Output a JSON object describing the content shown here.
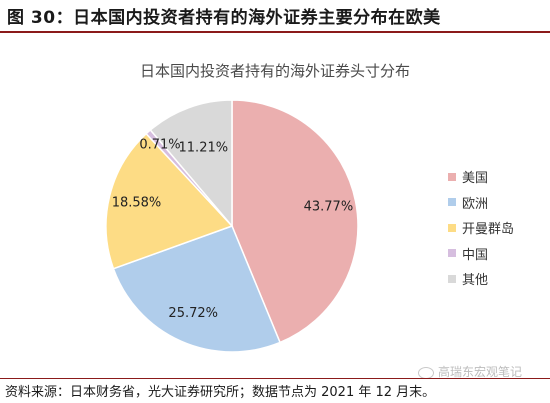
{
  "figure_title": "图 30：日本国内投资者持有的海外证券主要分布在欧美",
  "chart_data": {
    "type": "pie",
    "title": "日本国内投资者持有的海外证券头寸分布",
    "slices": [
      {
        "name": "美国",
        "value": 43.77,
        "label": "43.77%",
        "color": "#EBAFAF"
      },
      {
        "name": "欧洲",
        "value": 25.72,
        "label": "25.72%",
        "color": "#B0CDEB"
      },
      {
        "name": "开曼群岛",
        "value": 18.58,
        "label": "18.58%",
        "color": "#FDDC85"
      },
      {
        "name": "中国",
        "value": 0.71,
        "label": "0.71%",
        "color": "#D6BEDF"
      },
      {
        "name": "其他",
        "value": 11.21,
        "label": "11.21%",
        "color": "#D9D9D9"
      }
    ],
    "legend_position": "right",
    "start_angle": "12 o'clock",
    "direction": "clockwise"
  },
  "watermark": "高瑞东宏观笔记",
  "source": "资料来源：日本财务省，光大证券研究所；数据节点为 2021 年 12 月末。"
}
